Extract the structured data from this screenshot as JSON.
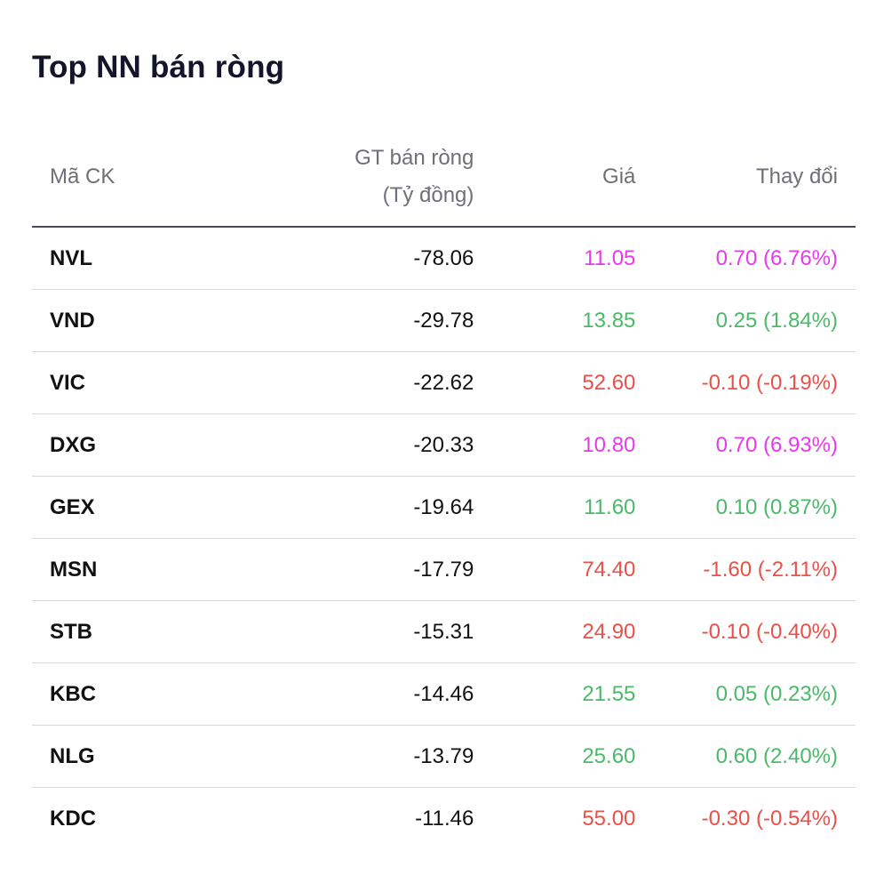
{
  "title": "Top NN bán ròng",
  "colors": {
    "up": "#4cb86a",
    "down": "#e8514a",
    "ceiling": "#e43ce8",
    "header_text": "#6f6f7a",
    "title_text": "#14142b"
  },
  "table": {
    "headers": {
      "ticker": "Mã CK",
      "net_sell_line1": "GT bán ròng",
      "net_sell_line2": "(Tỷ đồng)",
      "price": "Giá",
      "change": "Thay đổi"
    },
    "rows": [
      {
        "ticker": "NVL",
        "net_sell": "-78.06",
        "price": "11.05",
        "change": "0.70 (6.76%)",
        "status": "ceiling"
      },
      {
        "ticker": "VND",
        "net_sell": "-29.78",
        "price": "13.85",
        "change": "0.25 (1.84%)",
        "status": "up"
      },
      {
        "ticker": "VIC",
        "net_sell": "-22.62",
        "price": "52.60",
        "change": "-0.10 (-0.19%)",
        "status": "down"
      },
      {
        "ticker": "DXG",
        "net_sell": "-20.33",
        "price": "10.80",
        "change": "0.70 (6.93%)",
        "status": "ceiling"
      },
      {
        "ticker": "GEX",
        "net_sell": "-19.64",
        "price": "11.60",
        "change": "0.10 (0.87%)",
        "status": "up"
      },
      {
        "ticker": "MSN",
        "net_sell": "-17.79",
        "price": "74.40",
        "change": "-1.60 (-2.11%)",
        "status": "down"
      },
      {
        "ticker": "STB",
        "net_sell": "-15.31",
        "price": "24.90",
        "change": "-0.10 (-0.40%)",
        "status": "down"
      },
      {
        "ticker": "KBC",
        "net_sell": "-14.46",
        "price": "21.55",
        "change": "0.05 (0.23%)",
        "status": "up"
      },
      {
        "ticker": "NLG",
        "net_sell": "-13.79",
        "price": "25.60",
        "change": "0.60 (2.40%)",
        "status": "up"
      },
      {
        "ticker": "KDC",
        "net_sell": "-11.46",
        "price": "55.00",
        "change": "-0.30 (-0.54%)",
        "status": "down"
      }
    ]
  }
}
